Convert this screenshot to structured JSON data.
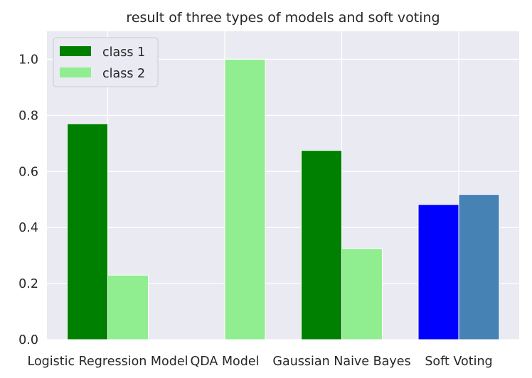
{
  "chart_data": {
    "type": "bar",
    "title": "result of three types of models and soft voting",
    "xlabel": "",
    "ylabel": "",
    "categories": [
      "Logistic Regression Model",
      "QDA Model",
      "Gaussian Naive Bayes",
      "Soft Voting"
    ],
    "series": [
      {
        "name": "class 1",
        "values": [
          0.77,
          0.0,
          0.675,
          0.482
        ],
        "color": "#008000",
        "bar_colors": [
          "#008000",
          "#008000",
          "#008000",
          "#0000ff"
        ]
      },
      {
        "name": "class 2",
        "values": [
          0.23,
          1.0,
          0.325,
          0.518
        ],
        "color": "#90ee90",
        "bar_colors": [
          "#90ee90",
          "#90ee90",
          "#90ee90",
          "#4682b4"
        ]
      }
    ],
    "ylim": [
      0,
      1.1
    ],
    "yticks": [
      "0.0",
      "0.2",
      "0.4",
      "0.6",
      "0.8",
      "1.0"
    ],
    "grid": true,
    "legend_position": "top-left",
    "background_color": "#eaeaf2",
    "grid_color": "#ffffff"
  }
}
